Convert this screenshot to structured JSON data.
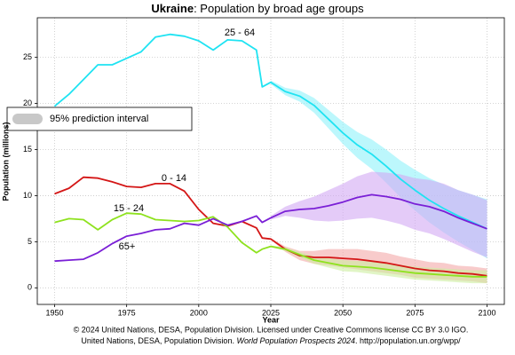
{
  "chart_data": {
    "type": "line",
    "title": [
      "Ukraine",
      ": Population by broad age groups"
    ],
    "x_label": "Year",
    "y_label": "Population (millions)",
    "interval_label": "95% prediction interval",
    "credits": [
      "© 2024 United Nations, DESA, Population Division. Licensed under Creative Commons license CC BY 3.0 IGO.",
      "United Nations, DESA, Population Division. ",
      "World Population Prospects 2024",
      ". http://population.un.org/wpp/"
    ],
    "x": [
      1950,
      1955,
      1960,
      1965,
      1970,
      1975,
      1980,
      1985,
      1990,
      1995,
      2000,
      2005,
      2010,
      2015,
      2020,
      2022,
      2025,
      2030,
      2035,
      2040,
      2045,
      2050,
      2055,
      2060,
      2065,
      2070,
      2075,
      2080,
      2085,
      2090,
      2095,
      2100
    ],
    "xlim": [
      1944,
      2106
    ],
    "xticks": [
      1950,
      1975,
      2000,
      2025,
      2050,
      2075,
      2100
    ],
    "ylim": [
      -1.8,
      29.3
    ],
    "yticks": [
      0,
      5,
      10,
      15,
      20,
      25
    ],
    "grid": true,
    "series": [
      {
        "name": "25 - 64",
        "color": "#1fe3f2",
        "band_color": "#8ff2fa",
        "values": [
          19.7,
          21.0,
          22.6,
          24.2,
          24.2,
          24.9,
          25.6,
          27.2,
          27.5,
          27.3,
          26.8,
          25.8,
          26.9,
          26.8,
          25.8,
          21.8,
          22.3,
          21.3,
          20.8,
          19.8,
          18.3,
          16.8,
          15.5,
          14.5,
          13.2,
          11.8,
          10.6,
          9.5,
          8.6,
          7.8,
          7.1,
          6.4
        ],
        "lower": [
          null,
          null,
          null,
          null,
          null,
          null,
          null,
          null,
          null,
          null,
          null,
          null,
          null,
          null,
          null,
          null,
          22.1,
          20.9,
          20.2,
          19.0,
          17.3,
          15.6,
          14.1,
          12.9,
          11.4,
          9.8,
          8.4,
          7.1,
          6.0,
          5.0,
          4.1,
          3.2
        ],
        "upper": [
          null,
          null,
          null,
          null,
          null,
          null,
          null,
          null,
          null,
          null,
          null,
          null,
          null,
          null,
          null,
          null,
          22.5,
          21.7,
          21.4,
          20.6,
          19.3,
          18.0,
          16.9,
          16.1,
          15.0,
          13.8,
          12.8,
          11.9,
          11.2,
          10.6,
          10.1,
          9.6
        ]
      },
      {
        "name": "0 - 14",
        "color": "#d41616",
        "band_color": "#f4a8a8",
        "values": [
          10.2,
          10.8,
          12.0,
          11.9,
          11.5,
          11.0,
          10.9,
          11.3,
          11.3,
          10.5,
          8.5,
          7.0,
          6.7,
          7.2,
          6.5,
          5.4,
          5.3,
          4.2,
          3.5,
          3.3,
          3.3,
          3.2,
          3.1,
          2.9,
          2.7,
          2.4,
          2.1,
          1.9,
          1.8,
          1.6,
          1.5,
          1.3
        ],
        "lower": [
          null,
          null,
          null,
          null,
          null,
          null,
          null,
          null,
          null,
          null,
          null,
          null,
          null,
          null,
          null,
          null,
          5.2,
          3.9,
          3.0,
          2.6,
          2.4,
          2.2,
          2.0,
          1.8,
          1.6,
          1.4,
          1.1,
          1.0,
          0.9,
          0.8,
          0.7,
          0.5
        ],
        "upper": [
          null,
          null,
          null,
          null,
          null,
          null,
          null,
          null,
          null,
          null,
          null,
          null,
          null,
          null,
          null,
          null,
          5.4,
          4.5,
          4.0,
          4.0,
          4.2,
          4.2,
          4.2,
          4.0,
          3.8,
          3.4,
          3.1,
          2.8,
          2.7,
          2.4,
          2.3,
          2.1
        ]
      },
      {
        "name": "15 - 24",
        "color": "#8ee21e",
        "band_color": "#cdeea0",
        "values": [
          7.1,
          7.5,
          7.4,
          6.3,
          7.4,
          8.1,
          8.0,
          7.4,
          7.3,
          7.2,
          7.3,
          7.7,
          6.6,
          4.9,
          3.8,
          4.2,
          4.5,
          4.2,
          3.6,
          3.0,
          2.7,
          2.4,
          2.3,
          2.2,
          2.0,
          1.8,
          1.6,
          1.5,
          1.4,
          1.3,
          1.2,
          1.2
        ],
        "lower": [
          null,
          null,
          null,
          null,
          null,
          null,
          null,
          null,
          null,
          null,
          null,
          null,
          null,
          null,
          null,
          null,
          4.4,
          4.0,
          3.3,
          2.6,
          2.2,
          1.8,
          1.7,
          1.5,
          1.3,
          1.1,
          0.9,
          0.8,
          0.7,
          0.6,
          0.5,
          0.5
        ],
        "upper": [
          null,
          null,
          null,
          null,
          null,
          null,
          null,
          null,
          null,
          null,
          null,
          null,
          null,
          null,
          null,
          null,
          4.6,
          4.4,
          3.9,
          3.4,
          3.2,
          3.0,
          2.9,
          2.9,
          2.7,
          2.5,
          2.3,
          2.2,
          2.1,
          2.0,
          1.9,
          1.9
        ]
      },
      {
        "name": "65+",
        "color": "#7a1fd6",
        "band_color": "#d2a8f4",
        "values": [
          2.9,
          3.0,
          3.1,
          3.8,
          4.8,
          5.6,
          5.9,
          6.3,
          6.4,
          7.0,
          6.8,
          7.5,
          6.8,
          7.2,
          7.8,
          7.1,
          7.6,
          8.3,
          8.5,
          8.6,
          8.9,
          9.3,
          9.8,
          10.1,
          9.9,
          9.6,
          9.1,
          8.8,
          8.3,
          7.6,
          7.0,
          6.4
        ],
        "lower": [
          null,
          null,
          null,
          null,
          null,
          null,
          null,
          null,
          null,
          null,
          null,
          null,
          null,
          null,
          null,
          null,
          7.4,
          7.8,
          7.6,
          7.3,
          7.2,
          7.3,
          7.5,
          7.6,
          7.3,
          6.9,
          6.3,
          5.9,
          5.3,
          4.6,
          3.9,
          3.3
        ],
        "upper": [
          null,
          null,
          null,
          null,
          null,
          null,
          null,
          null,
          null,
          null,
          null,
          null,
          null,
          null,
          null,
          null,
          7.8,
          8.8,
          9.4,
          9.9,
          10.6,
          11.3,
          12.1,
          12.6,
          12.5,
          12.3,
          11.9,
          11.7,
          11.3,
          10.6,
          10.1,
          9.5
        ]
      }
    ]
  }
}
